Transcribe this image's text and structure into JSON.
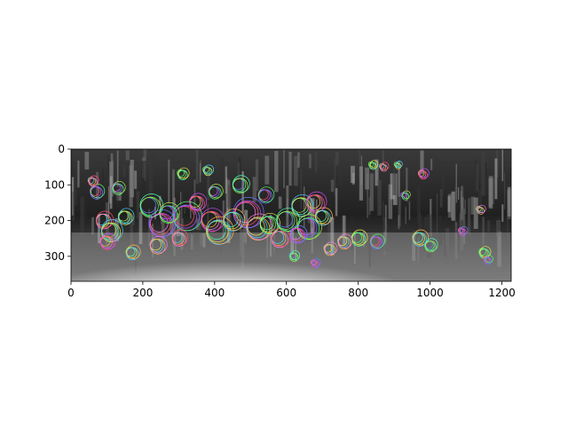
{
  "figure": {
    "image_description_colors": {
      "photo_tone_dark": "#1c1c1c",
      "photo_tone_mid": "#6e6e6e",
      "photo_tone_light": "#e8e8e8",
      "road_highlight": "#f7f7f7"
    },
    "keypoint_palette": [
      "#ff4d6a",
      "#4dd2ff",
      "#a8e64d",
      "#c94dff",
      "#ffb84d",
      "#4dffb1",
      "#6a7dff",
      "#ff7de0",
      "#e6e64d",
      "#4dff6a"
    ]
  },
  "chart_data": {
    "type": "scatter",
    "title": "",
    "xlabel": "",
    "ylabel": "",
    "xlim": [
      0,
      1226
    ],
    "ylim": [
      370,
      0
    ],
    "x_ticks": [
      0,
      200,
      400,
      600,
      800,
      1000,
      1200
    ],
    "y_ticks": [
      0,
      100,
      200,
      300
    ],
    "x_tick_labels": [
      "0",
      "200",
      "400",
      "600",
      "800",
      "1000",
      "1200"
    ],
    "y_tick_labels": [
      "0",
      "100",
      "200",
      "300"
    ],
    "grid": false,
    "legend": "none",
    "series": [
      {
        "values": [
          [
            70,
            120,
            18
          ],
          [
            90,
            200,
            22
          ],
          [
            110,
            230,
            28
          ],
          [
            130,
            110,
            16
          ],
          [
            100,
            260,
            20
          ],
          [
            170,
            290,
            18
          ],
          [
            220,
            160,
            30
          ],
          [
            250,
            210,
            35
          ],
          [
            240,
            270,
            22
          ],
          [
            310,
            70,
            14
          ],
          [
            320,
            190,
            38
          ],
          [
            300,
            250,
            20
          ],
          [
            380,
            60,
            12
          ],
          [
            400,
            120,
            18
          ],
          [
            390,
            200,
            30
          ],
          [
            410,
            230,
            36
          ],
          [
            470,
            100,
            22
          ],
          [
            490,
            180,
            40
          ],
          [
            520,
            220,
            34
          ],
          [
            550,
            210,
            26
          ],
          [
            540,
            130,
            20
          ],
          [
            580,
            250,
            24
          ],
          [
            640,
            160,
            28
          ],
          [
            660,
            220,
            32
          ],
          [
            680,
            150,
            26
          ],
          [
            700,
            190,
            22
          ],
          [
            620,
            300,
            12
          ],
          [
            680,
            320,
            10
          ],
          [
            720,
            280,
            16
          ],
          [
            800,
            250,
            20
          ],
          [
            850,
            260,
            18
          ],
          [
            870,
            50,
            10
          ],
          [
            910,
            45,
            8
          ],
          [
            930,
            130,
            10
          ],
          [
            980,
            70,
            12
          ],
          [
            970,
            250,
            20
          ],
          [
            1000,
            270,
            16
          ],
          [
            1090,
            230,
            10
          ],
          [
            1140,
            170,
            10
          ],
          [
            1150,
            290,
            14
          ],
          [
            1160,
            310,
            10
          ],
          [
            60,
            90,
            12
          ],
          [
            150,
            190,
            20
          ],
          [
            270,
            180,
            26
          ],
          [
            350,
            150,
            22
          ],
          [
            450,
            200,
            28
          ],
          [
            600,
            200,
            30
          ],
          [
            630,
            240,
            22
          ],
          [
            760,
            260,
            18
          ],
          [
            840,
            45,
            10
          ]
        ]
      }
    ]
  }
}
